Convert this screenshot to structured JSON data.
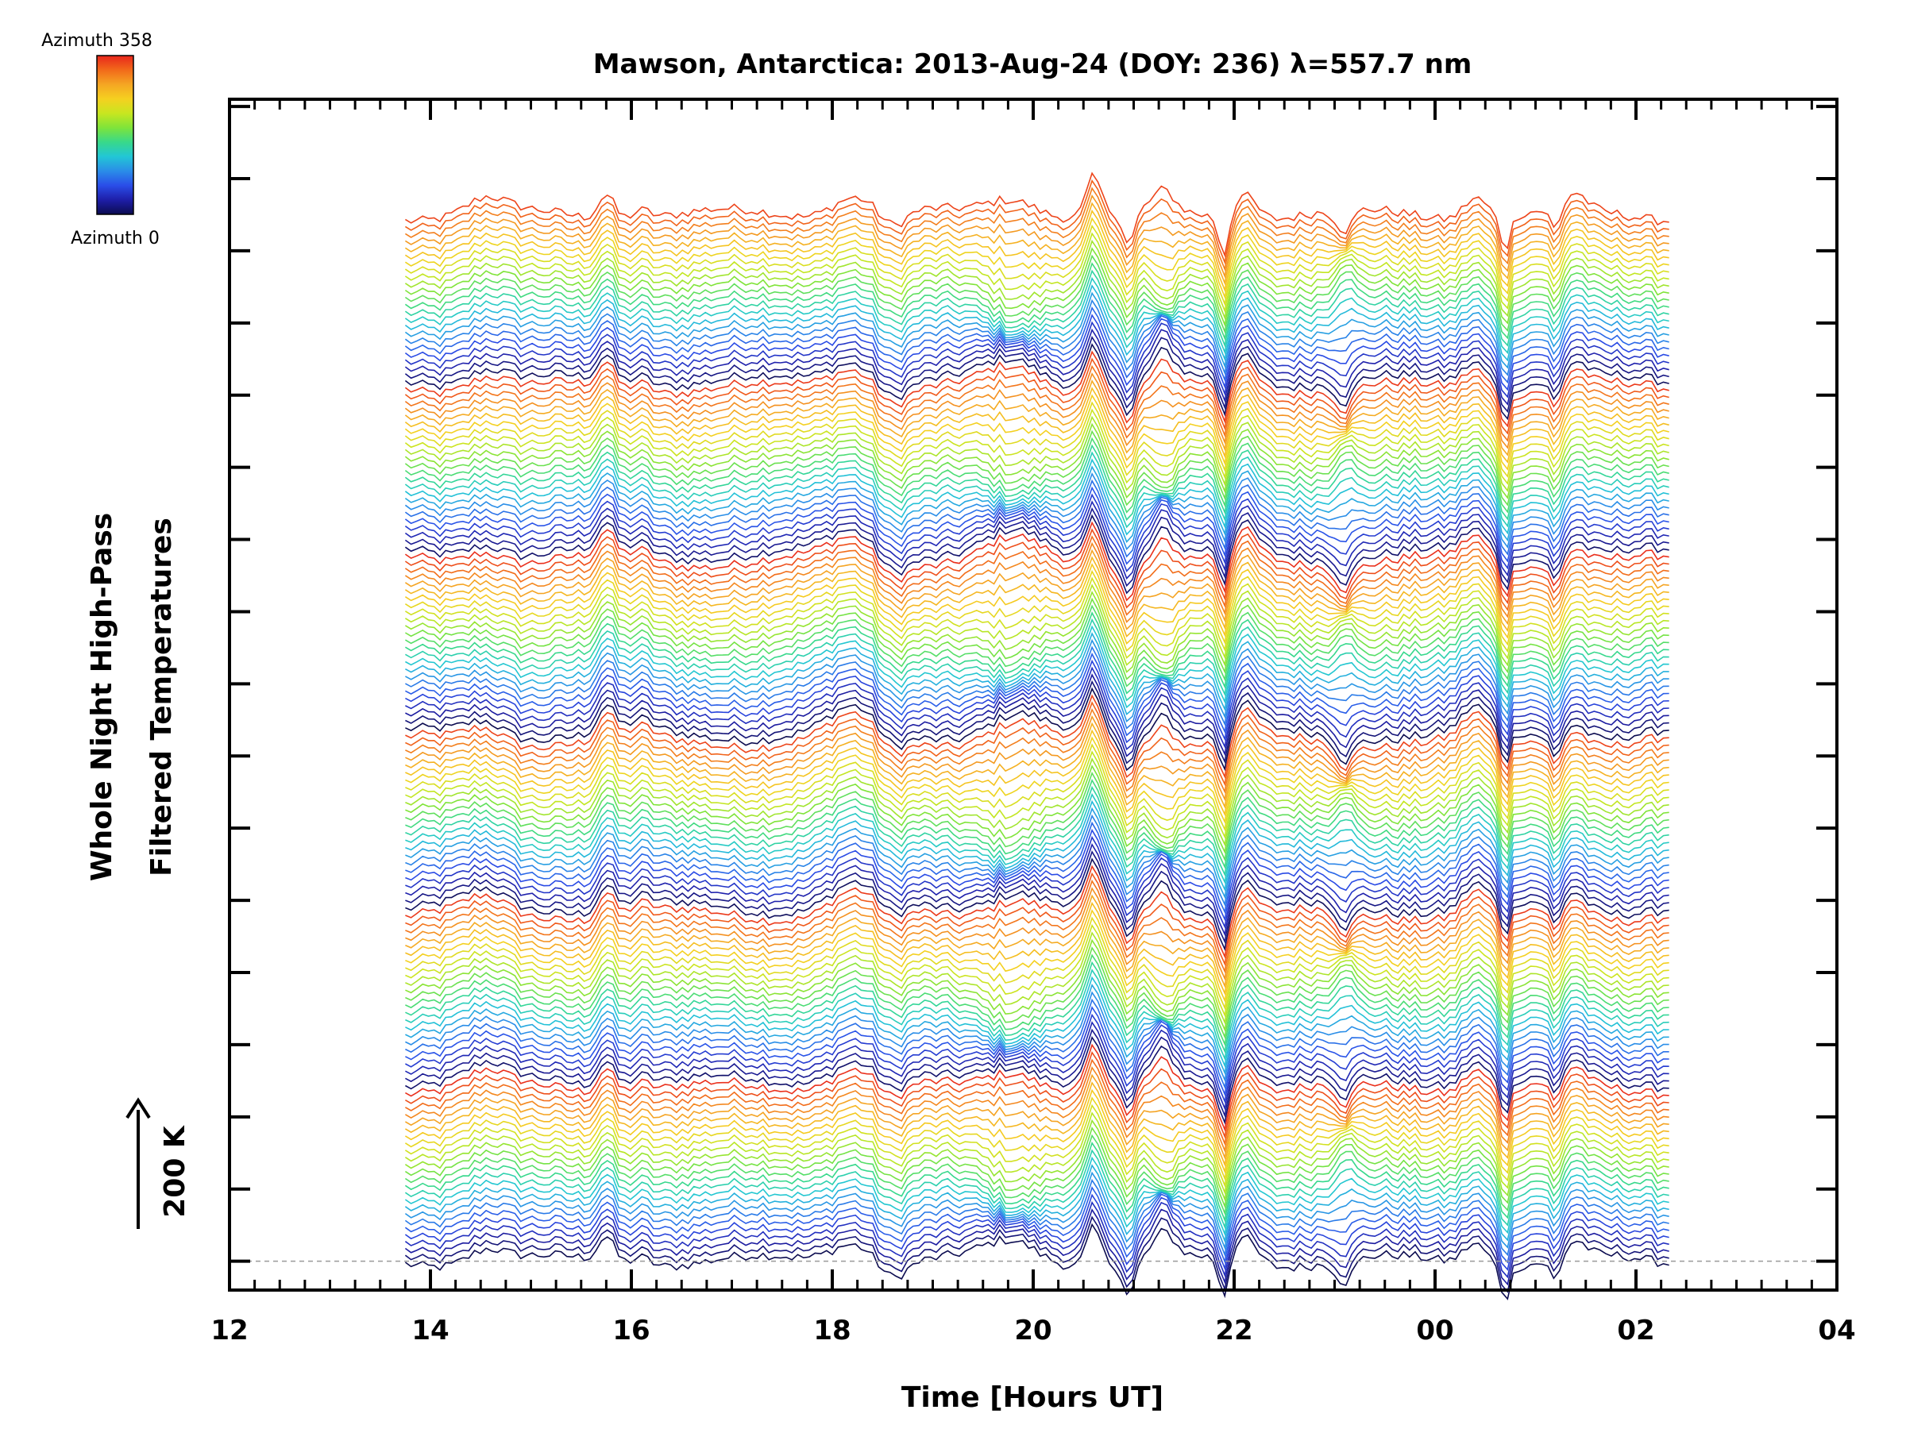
{
  "chart_data": {
    "type": "line",
    "title": "Mawson, Antarctica: 2013-Aug-24 (DOY: 236) λ=557.7 nm",
    "xlabel": "Time [Hours UT]",
    "ylabel_line1": "Whole Night High-Pass",
    "ylabel_line2": "Filtered Temperatures",
    "scale_label": "200 K",
    "colorbar": {
      "top_label": "Azimuth 358",
      "bottom_label": "Azimuth 0",
      "colors": [
        "#e8261c",
        "#f26a1a",
        "#f5a623",
        "#f5d020",
        "#c8e620",
        "#7ee43a",
        "#38d98a",
        "#22c6d6",
        "#2a8de8",
        "#2a4de8",
        "#1e1ea8",
        "#0c0c50"
      ]
    },
    "x_tick_labels": [
      "12",
      "14",
      "16",
      "18",
      "20",
      "22",
      "00",
      "02",
      "04"
    ],
    "x_range_hours": [
      12,
      28
    ],
    "data_range_hours": [
      13.75,
      26.33
    ],
    "n_traces": 146,
    "n_cycles": 6,
    "trace_offset_K": 15,
    "y_range_traces": [
      -4,
      161
    ],
    "grid": false,
    "baseline_dashed": true
  }
}
